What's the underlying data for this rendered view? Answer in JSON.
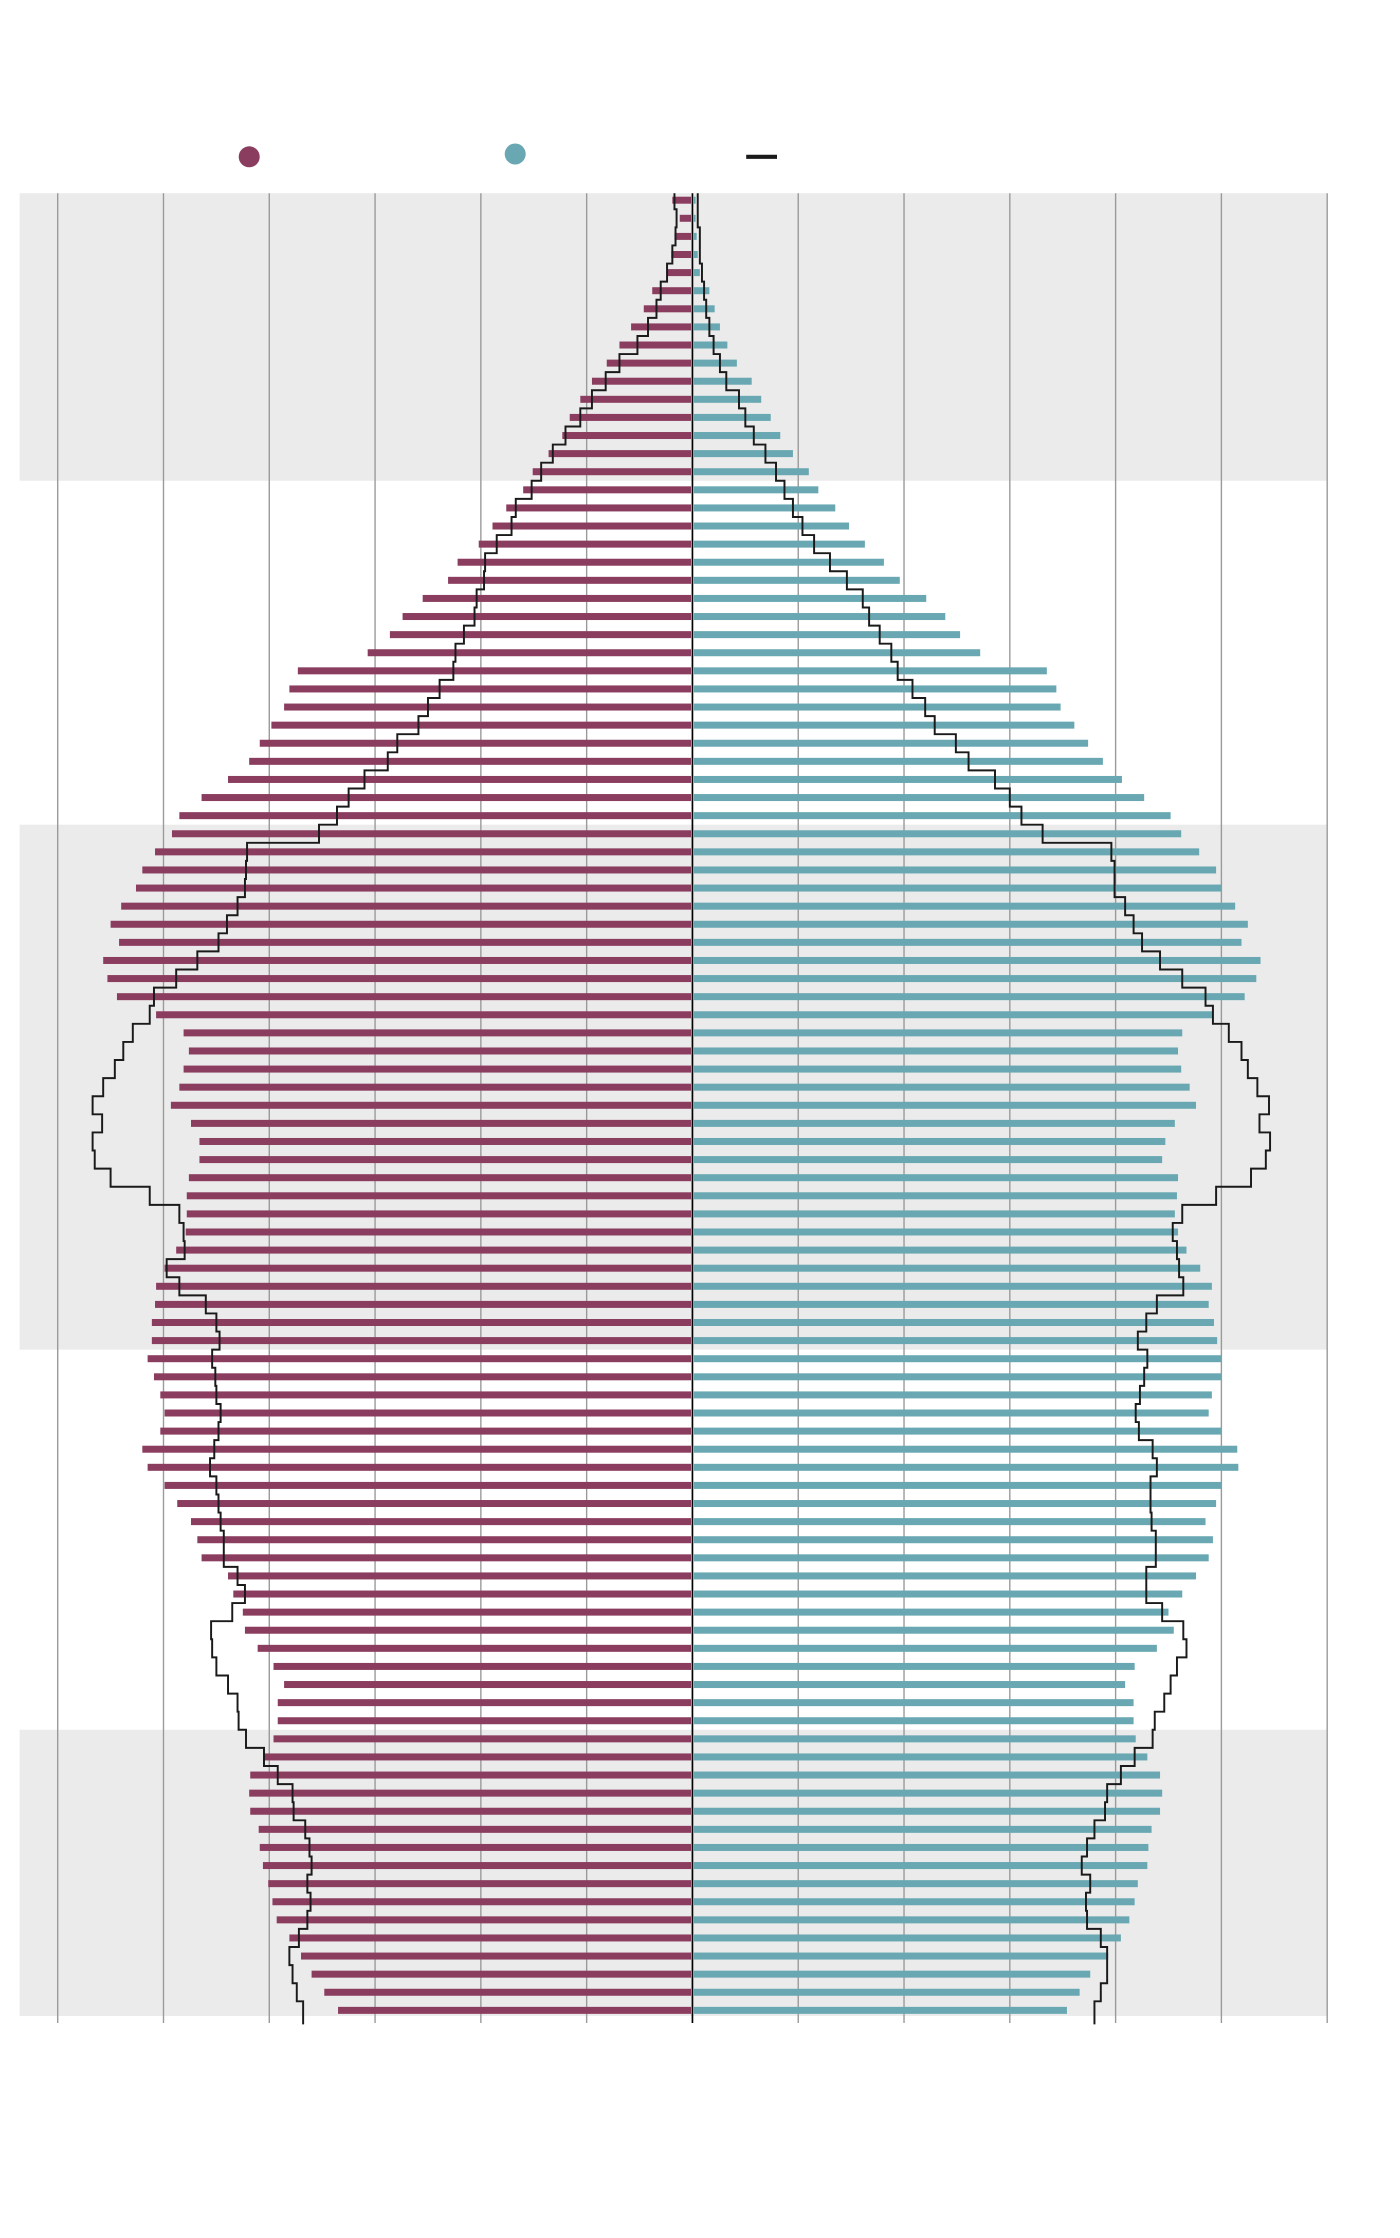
{
  "chart_data": {
    "type": "bar",
    "orientation": "horizontal-pyramid",
    "title": "",
    "xlabel": "",
    "ylabel": "",
    "xlim": [
      -63.6,
      60
    ],
    "grid": true,
    "legend_placement": "top",
    "row_order": "top-to-bottom",
    "colors": {
      "left": "#8b3d5f",
      "right": "#69a8b2",
      "outline": "#1a1a1a",
      "band": "#ebebeb"
    },
    "legend": [
      {
        "marker": "dot",
        "color": "#8b3d5f"
      },
      {
        "marker": "dot",
        "color": "#69a8b2"
      },
      {
        "marker": "line",
        "color": "#1a1a1a"
      }
    ],
    "series": [
      {
        "side": "left",
        "values": [
          1.9,
          1.2,
          1.7,
          2.0,
          2.4,
          3.8,
          4.6,
          5.8,
          6.9,
          8.1,
          9.5,
          10.6,
          11.6,
          12.3,
          13.6,
          15.1,
          16.0,
          17.6,
          18.9,
          20.2,
          22.2,
          23.1,
          25.5,
          27.4,
          28.6,
          30.7,
          37.3,
          38.1,
          38.6,
          39.8,
          40.9,
          41.9,
          43.9,
          46.4,
          48.5,
          49.2,
          50.8,
          52.0,
          52.6,
          54.0,
          55.0,
          54.2,
          55.7,
          55.3,
          54.4,
          50.7,
          48.1,
          47.6,
          48.1,
          48.5,
          49.3,
          47.4,
          46.6,
          46.6,
          47.6,
          47.8,
          47.8,
          47.9,
          48.8,
          49.9,
          50.7,
          50.8,
          51.1,
          51.1,
          51.5,
          50.9,
          50.3,
          49.9,
          50.3,
          52.0,
          51.5,
          49.9,
          48.7,
          47.4,
          46.8,
          46.4,
          43.9,
          43.4,
          42.5,
          42.3,
          41.1,
          39.6,
          38.6,
          39.2,
          39.2,
          39.6,
          40.5,
          41.8,
          41.9,
          41.8,
          41.0,
          40.9,
          40.6,
          40.1,
          39.7,
          39.3,
          38.1,
          37.0,
          36.0,
          34.8,
          33.5
        ]
      },
      {
        "side": "right",
        "values": [
          0.3,
          0.3,
          0.4,
          0.5,
          0.7,
          1.6,
          2.1,
          2.6,
          3.3,
          4.2,
          5.6,
          6.5,
          7.4,
          8.3,
          9.5,
          11.0,
          11.9,
          13.5,
          14.8,
          16.3,
          18.1,
          19.6,
          22.1,
          23.9,
          25.3,
          27.2,
          33.5,
          34.4,
          34.8,
          36.1,
          37.4,
          38.8,
          40.6,
          42.7,
          45.2,
          46.2,
          47.9,
          49.5,
          50.0,
          51.3,
          52.5,
          51.9,
          53.7,
          53.3,
          52.2,
          49.2,
          46.3,
          45.9,
          46.2,
          47.0,
          47.6,
          45.6,
          44.7,
          44.4,
          45.9,
          45.8,
          45.6,
          45.9,
          46.7,
          48.0,
          49.1,
          48.8,
          49.3,
          49.6,
          50.0,
          50.0,
          49.1,
          48.8,
          50.0,
          51.5,
          51.6,
          50.0,
          49.5,
          48.5,
          49.2,
          48.8,
          47.6,
          46.3,
          45.0,
          45.5,
          43.9,
          41.8,
          40.9,
          41.7,
          41.7,
          41.9,
          43.0,
          44.2,
          44.4,
          44.2,
          43.4,
          43.1,
          43.0,
          42.1,
          41.8,
          41.3,
          40.5,
          39.3,
          37.6,
          36.6,
          35.4
        ]
      },
      {
        "side": "left",
        "kind": "outline",
        "values": [
          1.7,
          1.5,
          1.6,
          1.9,
          2.4,
          3.0,
          3.4,
          4.2,
          5.2,
          6.9,
          8.2,
          9.5,
          10.6,
          12.0,
          13.2,
          14.3,
          15.2,
          16.7,
          17.1,
          18.5,
          19.6,
          19.7,
          20.4,
          20.6,
          21.6,
          22.4,
          22.6,
          23.9,
          25.0,
          25.9,
          27.9,
          28.8,
          31.0,
          32.5,
          33.6,
          35.3,
          42.1,
          42.2,
          42.3,
          43.0,
          44.0,
          44.8,
          46.8,
          48.8,
          50.9,
          51.3,
          52.9,
          53.8,
          54.6,
          55.7,
          56.7,
          55.8,
          56.7,
          56.5,
          55.0,
          51.3,
          48.5,
          48.1,
          48.0,
          49.7,
          48.5,
          46.0,
          45.0,
          44.7,
          45.4,
          45.1,
          45.0,
          44.6,
          44.8,
          45.2,
          45.6,
          45.0,
          44.8,
          44.6,
          44.3,
          44.3,
          43.0,
          42.3,
          43.5,
          45.5,
          45.4,
          45.0,
          43.9,
          43.0,
          42.9,
          42.2,
          40.5,
          39.2,
          37.8,
          37.7,
          36.6,
          36.2,
          36.0,
          36.4,
          36.1,
          36.4,
          37.2,
          38.1,
          37.8,
          37.4,
          36.8
        ]
      },
      {
        "side": "right",
        "kind": "outline",
        "values": [
          0.5,
          0.5,
          0.7,
          0.7,
          0.9,
          1.1,
          1.3,
          1.6,
          2.0,
          2.6,
          3.2,
          4.4,
          5.0,
          5.8,
          6.9,
          7.9,
          8.7,
          9.5,
          10.4,
          11.5,
          13.0,
          14.6,
          16.1,
          16.7,
          17.7,
          18.8,
          19.4,
          20.8,
          22.0,
          22.9,
          24.9,
          26.1,
          28.6,
          30.0,
          31.1,
          33.1,
          39.6,
          39.9,
          39.9,
          40.9,
          41.7,
          42.5,
          44.2,
          46.3,
          48.5,
          49.2,
          50.7,
          51.9,
          52.5,
          53.4,
          54.5,
          53.6,
          54.6,
          54.2,
          52.8,
          49.5,
          46.3,
          45.4,
          45.8,
          46.0,
          46.4,
          43.9,
          42.9,
          42.1,
          43.0,
          42.7,
          42.3,
          41.9,
          42.2,
          43.5,
          43.9,
          43.3,
          43.3,
          43.4,
          43.8,
          43.8,
          42.9,
          42.9,
          44.4,
          46.4,
          46.7,
          45.8,
          45.2,
          44.6,
          43.7,
          43.5,
          41.8,
          40.5,
          39.2,
          39.0,
          38.0,
          37.3,
          36.8,
          37.6,
          37.2,
          37.3,
          38.6,
          39.2,
          39.2,
          38.6,
          38.0
        ]
      }
    ]
  }
}
